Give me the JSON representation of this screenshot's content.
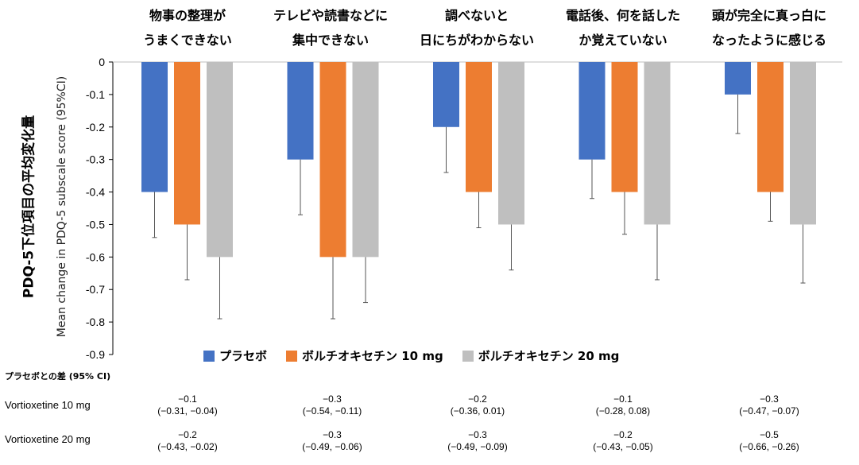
{
  "chart_data": {
    "type": "bar",
    "categories": [
      {
        "line1": "物事の整理が",
        "line2": "うまくできない"
      },
      {
        "line1": "テレビや読書などに",
        "line2": "集中できない"
      },
      {
        "line1": "調べないと",
        "line2": "日にちがわからない"
      },
      {
        "line1": "電話後、何を話した",
        "line2": "か覚えていない"
      },
      {
        "line1": "頭が完全に真っ白に",
        "line2": "なったように感じる"
      }
    ],
    "series": [
      {
        "name": "プラセボ",
        "color": "#4472c4",
        "values": [
          -0.4,
          -0.3,
          -0.2,
          -0.3,
          -0.1
        ],
        "ci_low": [
          -0.54,
          -0.47,
          -0.34,
          -0.42,
          -0.22
        ]
      },
      {
        "name": "ボルチオキセチン 10 mg",
        "color": "#ed7d31",
        "values": [
          -0.5,
          -0.6,
          -0.4,
          -0.4,
          -0.4
        ],
        "ci_low": [
          -0.67,
          -0.79,
          -0.51,
          -0.53,
          -0.49
        ]
      },
      {
        "name": "ボルチオキセチン 20 mg",
        "color": "#bfbfbf",
        "values": [
          -0.6,
          -0.6,
          -0.5,
          -0.5,
          -0.5
        ],
        "ci_low": [
          -0.79,
          -0.74,
          -0.64,
          -0.67,
          -0.68
        ]
      }
    ],
    "ylim": [
      -0.9,
      0
    ],
    "yticks": [
      "0",
      "-0.1",
      "-0.2",
      "-0.3",
      "-0.4",
      "-0.5",
      "-0.6",
      "-0.7",
      "-0.8",
      "-0.9"
    ],
    "ylabel_jp": "PDQ-5下位項目の平均変化量",
    "ylabel_en": "Mean change in PDQ-5 subscale score (95%CI)"
  },
  "table": {
    "header": "プラセボとの差 (95% CI)",
    "rows": [
      {
        "label": "Vortioxetine 10 mg",
        "cells": [
          {
            "est": "−0.1",
            "ci": "(−0.31, −0.04)"
          },
          {
            "est": "−0.3",
            "ci": "(−0.54, −0.11)"
          },
          {
            "est": "−0.2",
            "ci": "(−0.36, 0.01)"
          },
          {
            "est": "−0.1",
            "ci": "(−0.28, 0.08)"
          },
          {
            "est": "−0.3",
            "ci": "(−0.47, −0.07)"
          }
        ]
      },
      {
        "label": "Vortioxetine 20 mg",
        "cells": [
          {
            "est": "−0.2",
            "ci": "(−0.43, −0.02)"
          },
          {
            "est": "−0.3",
            "ci": "(−0.49, −0.06)"
          },
          {
            "est": "−0.3",
            "ci": "(−0.49, −0.09)"
          },
          {
            "est": "−0.2",
            "ci": "(−0.43, −0.05)"
          },
          {
            "est": "−0.5",
            "ci": "(−0.66, −0.26)"
          }
        ]
      }
    ]
  }
}
